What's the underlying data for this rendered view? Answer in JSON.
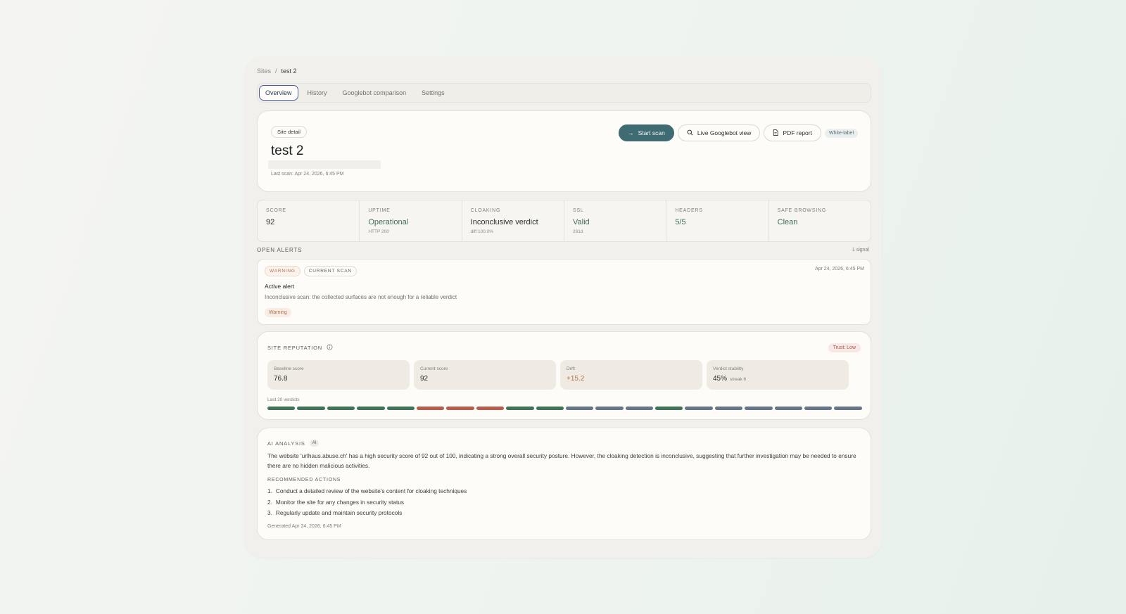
{
  "breadcrumb": {
    "root": "Sites",
    "sep": "/",
    "current": "test 2"
  },
  "tabs": [
    {
      "label": "Overview",
      "active": true
    },
    {
      "label": "History"
    },
    {
      "label": "Googlebot comparison"
    },
    {
      "label": "Settings"
    }
  ],
  "header": {
    "tag": "Site detail",
    "title": "test 2",
    "last_scan": "Last scan: Apr 24, 2026, 6:45 PM",
    "actions": {
      "start_scan": "Start scan",
      "live_view": "Live Googlebot view",
      "pdf_report": "PDF report",
      "white_label": "White-label"
    },
    "icons": {
      "start": "arrow-right-icon",
      "live": "search-icon",
      "pdf": "document-icon"
    }
  },
  "stats": [
    {
      "label": "SCORE",
      "value": "92",
      "sub": ""
    },
    {
      "label": "UPTIME",
      "value": "Operational",
      "sub": "HTTP 200"
    },
    {
      "label": "CLOAKING",
      "value": "Inconclusive verdict",
      "sub": "diff 100.0%"
    },
    {
      "label": "SSL",
      "value": "Valid",
      "sub": "261d"
    },
    {
      "label": "HEADERS",
      "value": "5/5",
      "sub": ""
    },
    {
      "label": "SAFE BROWSING",
      "value": "Clean",
      "sub": ""
    }
  ],
  "alerts": {
    "section_label": "OPEN ALERTS",
    "count": "1 signal",
    "item": {
      "chip_severity": "WARNING",
      "chip_source": "CURRENT SCAN",
      "time": "Apr 24, 2026, 6:45 PM",
      "title": "Active alert",
      "description": "Inconclusive scan: the collected surfaces are not enough for a reliable verdict",
      "severity": "Warning"
    }
  },
  "reputation": {
    "label": "SITE REPUTATION",
    "trust": "Trust: Low",
    "metrics": [
      {
        "label": "Baseline score",
        "value": "76.8"
      },
      {
        "label": "Current score",
        "value": "92"
      },
      {
        "label": "Drift",
        "value": "+15.2"
      },
      {
        "label": "Verdict stability",
        "value": "45%",
        "extra": "streak 6"
      }
    ],
    "verdicts_label": "Last 20 verdicts",
    "verdicts": [
      "green",
      "green",
      "green",
      "green",
      "green",
      "red",
      "red",
      "red",
      "green",
      "green",
      "gray",
      "gray",
      "gray",
      "green",
      "gray",
      "gray",
      "gray",
      "gray",
      "gray",
      "gray"
    ],
    "colors": {
      "green": "#3f7458",
      "red": "#b85d4c",
      "gray": "#66768a"
    }
  },
  "ai": {
    "label": "AI ANALYSIS",
    "chip": "AI",
    "text": "The website 'urlhaus.abuse.ch' has a high security score of 92 out of 100, indicating a strong overall security posture. However, the cloaking detection is inconclusive, suggesting that further investigation may be needed to ensure there are no hidden malicious activities.",
    "recommended_label": "RECOMMENDED ACTIONS",
    "actions": [
      "Conduct a detailed review of the website's content for cloaking techniques",
      "Monitor the site for any changes in security status",
      "Regularly update and maintain security protocols"
    ],
    "generated": "Generated Apr 24, 2026, 6:45 PM"
  }
}
